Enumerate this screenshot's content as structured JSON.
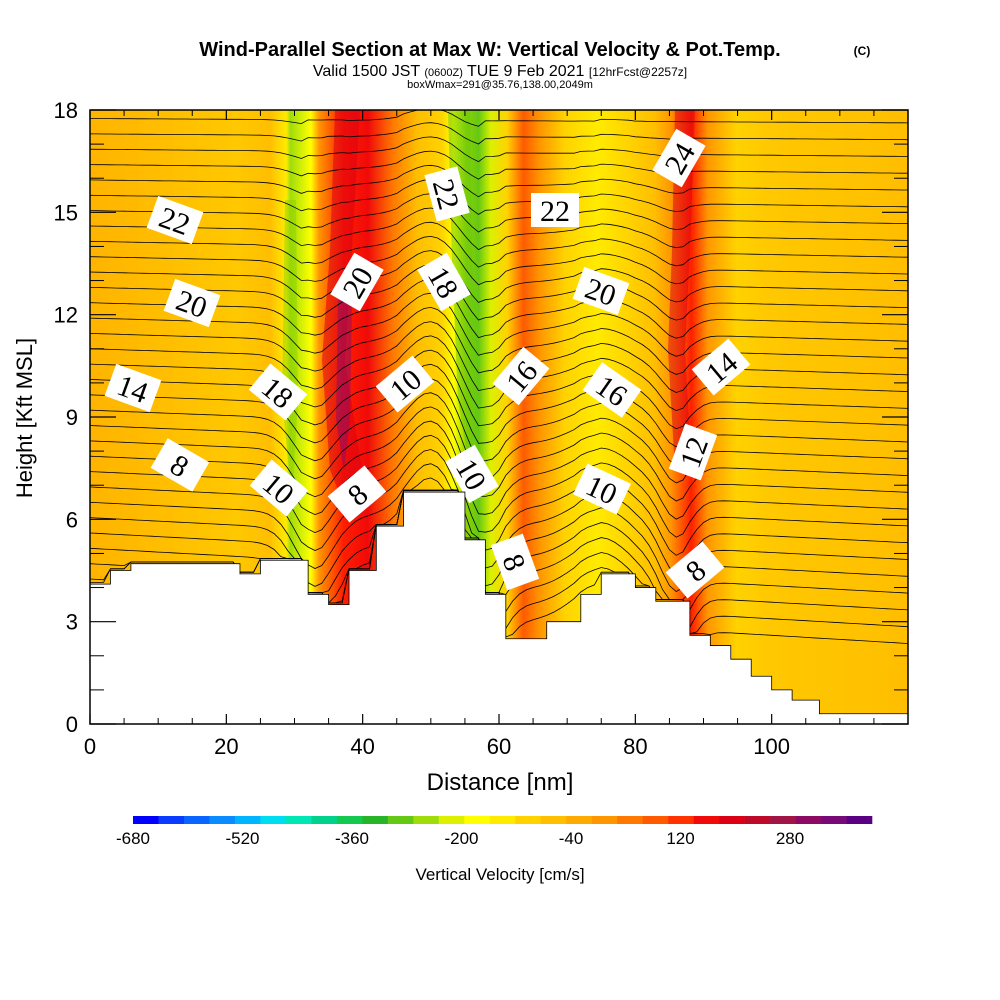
{
  "chart_data": {
    "type": "heatmap",
    "title": "Wind-Parallel Section at Max W: Vertical Velocity & Pot.Temp.",
    "title_mark": "(C)",
    "subtitle": {
      "valid": "Valid 1500 JST",
      "utc": "(0600Z)",
      "date": "TUE 9 Feb 2021",
      "fcst": "[12hrFcst@2257z]"
    },
    "box_info": "boxWmax=291@35.76,138.00,2049m",
    "xlabel": "Distance [nm]",
    "ylabel": "Height [Kft MSL]",
    "xlim": [
      0,
      120
    ],
    "ylim": [
      0,
      18
    ],
    "x_ticks": [
      "0",
      "20",
      "40",
      "60",
      "80",
      "100"
    ],
    "y_ticks": [
      "0",
      "3",
      "6",
      "9",
      "12",
      "15",
      "18"
    ],
    "colorbar": {
      "label": "Vertical Velocity [cm/s]",
      "tick_labels": [
        "-680",
        "-520",
        "-360",
        "-200",
        "-40",
        "120",
        "280"
      ],
      "colors": [
        "#0000ff",
        "#0a3cff",
        "#0a64ff",
        "#0a8cff",
        "#00b4ff",
        "#00dcf0",
        "#00e6b4",
        "#00d28c",
        "#14c850",
        "#28b428",
        "#64c814",
        "#a0dc0a",
        "#dcf000",
        "#ffff00",
        "#ffeb00",
        "#ffd200",
        "#ffbe00",
        "#ffaa00",
        "#ff9600",
        "#ff7800",
        "#ff5a00",
        "#ff3200",
        "#f00a0a",
        "#dc0014",
        "#be0a28",
        "#a01446",
        "#8c0a64",
        "#780a78",
        "#5a0082"
      ]
    },
    "terrain_kft": [
      [
        0,
        4.1
      ],
      [
        3,
        4.5
      ],
      [
        6,
        4.7
      ],
      [
        22,
        4.4
      ],
      [
        25,
        4.8
      ],
      [
        32,
        3.8
      ],
      [
        35,
        3.5
      ],
      [
        38,
        4.5
      ],
      [
        42,
        5.8
      ],
      [
        46,
        6.8
      ],
      [
        52,
        6.8
      ],
      [
        55,
        5.4
      ],
      [
        58,
        3.8
      ],
      [
        61,
        2.5
      ],
      [
        67,
        3.0
      ],
      [
        72,
        3.8
      ],
      [
        75,
        4.4
      ],
      [
        80,
        4.0
      ],
      [
        83,
        3.6
      ],
      [
        88,
        2.6
      ],
      [
        91,
        2.3
      ],
      [
        94,
        1.9
      ],
      [
        97,
        1.4
      ],
      [
        100,
        1.0
      ],
      [
        103,
        0.7
      ],
      [
        107,
        0.3
      ],
      [
        120,
        0.3
      ]
    ],
    "updraft_bands": [
      {
        "x": [
          30,
          42
        ],
        "peak_cm_s": 280
      },
      {
        "x": [
          58,
          62
        ],
        "peak_cm_s": 120
      },
      {
        "x": [
          84,
          90
        ],
        "peak_cm_s": 280
      }
    ],
    "downdraft_bands": [
      {
        "x": [
          27,
          31
        ],
        "min_cm_s": -300
      },
      {
        "x": [
          50,
          56
        ],
        "min_cm_s": -360
      }
    ],
    "contour_labels": [
      "22",
      "20",
      "14",
      "8",
      "18",
      "10",
      "20",
      "8",
      "10",
      "22",
      "18",
      "10",
      "8",
      "16",
      "22",
      "20",
      "16",
      "10",
      "24",
      "14",
      "12",
      "8"
    ]
  }
}
